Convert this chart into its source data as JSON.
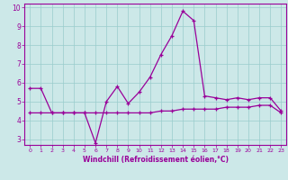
{
  "xlabel": "Windchill (Refroidissement éolien,°C)",
  "x": [
    0,
    1,
    2,
    3,
    4,
    5,
    6,
    7,
    8,
    9,
    10,
    11,
    12,
    13,
    14,
    15,
    16,
    17,
    18,
    19,
    20,
    21,
    22,
    23
  ],
  "line1_y": [
    5.7,
    5.7,
    4.4,
    4.4,
    4.4,
    4.4,
    2.8,
    5.0,
    5.8,
    4.9,
    5.5,
    6.3,
    7.5,
    8.5,
    9.8,
    9.3,
    5.3,
    5.2,
    5.1,
    5.2,
    5.1,
    5.2,
    5.2,
    4.5
  ],
  "line2_y": [
    4.4,
    4.4,
    4.4,
    4.4,
    4.4,
    4.4,
    4.4,
    4.4,
    4.4,
    4.4,
    4.4,
    4.4,
    4.5,
    4.5,
    4.6,
    4.6,
    4.6,
    4.6,
    4.7,
    4.7,
    4.7,
    4.8,
    4.8,
    4.4
  ],
  "line_color": "#990099",
  "bg_color": "#cce8e8",
  "grid_color": "#99cccc",
  "axis_color": "#990099",
  "text_color": "#990099",
  "ylim_min": 2.7,
  "ylim_max": 10.2,
  "yticks": [
    3,
    4,
    5,
    6,
    7,
    8,
    9,
    10
  ],
  "marker": "+"
}
